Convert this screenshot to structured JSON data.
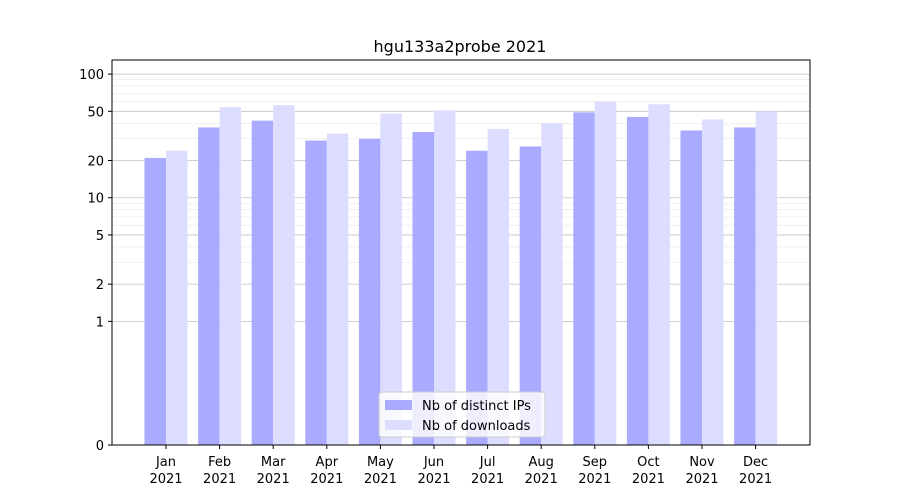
{
  "chart_data": {
    "type": "bar",
    "title": "hgu133a2probe 2021",
    "xlabel": "",
    "ylabel": "",
    "scale": "symlog",
    "categories": [
      [
        "Jan",
        "2021"
      ],
      [
        "Feb",
        "2021"
      ],
      [
        "Mar",
        "2021"
      ],
      [
        "Apr",
        "2021"
      ],
      [
        "May",
        "2021"
      ],
      [
        "Jun",
        "2021"
      ],
      [
        "Jul",
        "2021"
      ],
      [
        "Aug",
        "2021"
      ],
      [
        "Sep",
        "2021"
      ],
      [
        "Oct",
        "2021"
      ],
      [
        "Nov",
        "2021"
      ],
      [
        "Dec",
        "2021"
      ]
    ],
    "series": [
      {
        "name": "Nb of distinct IPs",
        "color": "#aaaaff",
        "values": [
          21,
          37,
          42,
          29,
          30,
          34,
          24,
          26,
          49,
          45,
          35,
          37
        ]
      },
      {
        "name": "Nb of downloads",
        "color": "#ddddff",
        "values": [
          24,
          54,
          56,
          33,
          48,
          51,
          36,
          40,
          60,
          57,
          43,
          50
        ]
      }
    ],
    "yticks": [
      0,
      1,
      2,
      5,
      10,
      20,
      50,
      100
    ],
    "ylim": [
      0,
      130
    ],
    "grid": true,
    "legend_position": "bottom-center"
  }
}
